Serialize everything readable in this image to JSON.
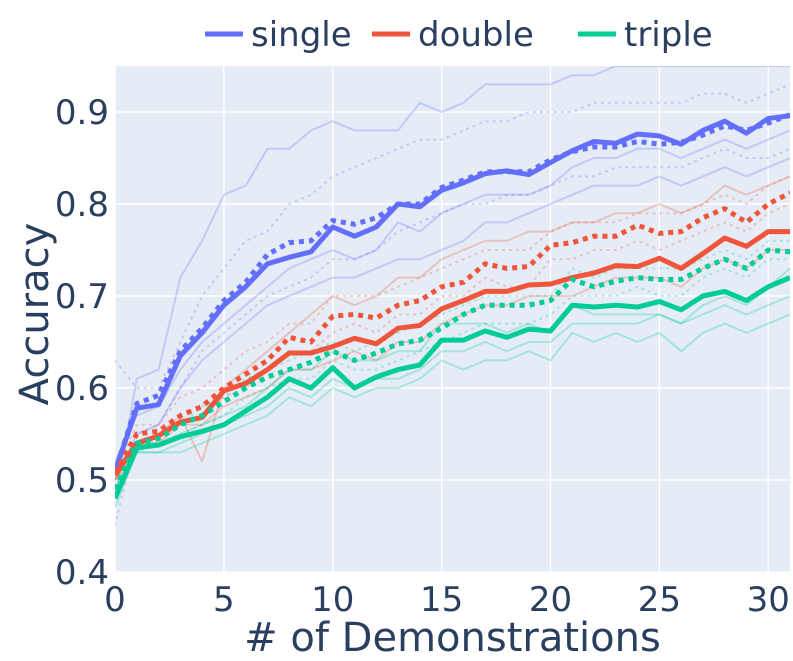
{
  "chart_data": {
    "type": "line",
    "title": "",
    "xlabel": "# of Demonstrations",
    "ylabel": "Accuracy",
    "xlim": [
      0,
      31
    ],
    "ylim": [
      0.4,
      0.95
    ],
    "grid": true,
    "legend_position": "top",
    "x_ticks": [
      "0",
      "5",
      "10",
      "15",
      "20",
      "25",
      "30"
    ],
    "y_ticks": [
      "0.4",
      "0.5",
      "0.6",
      "0.7",
      "0.8",
      "0.9"
    ],
    "x": [
      0,
      1,
      2,
      3,
      4,
      5,
      6,
      7,
      8,
      9,
      10,
      11,
      12,
      13,
      14,
      15,
      16,
      17,
      18,
      19,
      20,
      21,
      22,
      23,
      24,
      25,
      26,
      27,
      28,
      29,
      30,
      31
    ],
    "legend": [
      {
        "name": "single",
        "color": "#636efa"
      },
      {
        "name": "double",
        "color": "#ef553b"
      },
      {
        "name": "triple",
        "color": "#00cc96"
      }
    ],
    "series": [
      {
        "name": "single",
        "style": "solid-mean",
        "color": "#636efa",
        "values": [
          0.51,
          0.578,
          0.582,
          0.635,
          0.66,
          0.69,
          0.71,
          0.735,
          0.742,
          0.748,
          0.775,
          0.765,
          0.775,
          0.8,
          0.797,
          0.815,
          0.823,
          0.833,
          0.836,
          0.832,
          0.845,
          0.858,
          0.868,
          0.866,
          0.876,
          0.874,
          0.865,
          0.88,
          0.89,
          0.877,
          0.893,
          0.896
        ]
      },
      {
        "name": "single",
        "style": "dotted-mean",
        "color": "#636efa",
        "values": [
          0.508,
          0.583,
          0.592,
          0.64,
          0.665,
          0.695,
          0.715,
          0.745,
          0.758,
          0.76,
          0.782,
          0.778,
          0.785,
          0.8,
          0.8,
          0.818,
          0.826,
          0.835,
          0.835,
          0.835,
          0.848,
          0.857,
          0.862,
          0.862,
          0.868,
          0.865,
          0.867,
          0.875,
          0.885,
          0.88,
          0.888,
          0.897
        ]
      },
      {
        "name": "double",
        "style": "solid-mean",
        "color": "#ef553b",
        "values": [
          0.505,
          0.54,
          0.548,
          0.563,
          0.568,
          0.597,
          0.605,
          0.62,
          0.638,
          0.638,
          0.645,
          0.654,
          0.648,
          0.665,
          0.668,
          0.686,
          0.695,
          0.705,
          0.705,
          0.712,
          0.713,
          0.72,
          0.725,
          0.733,
          0.732,
          0.741,
          0.73,
          0.746,
          0.763,
          0.754,
          0.77,
          0.77
        ]
      },
      {
        "name": "double",
        "style": "dotted-mean",
        "color": "#ef553b",
        "values": [
          0.508,
          0.55,
          0.553,
          0.57,
          0.58,
          0.6,
          0.615,
          0.63,
          0.655,
          0.65,
          0.678,
          0.68,
          0.676,
          0.69,
          0.695,
          0.71,
          0.715,
          0.735,
          0.73,
          0.732,
          0.755,
          0.758,
          0.765,
          0.765,
          0.777,
          0.768,
          0.77,
          0.785,
          0.795,
          0.78,
          0.8,
          0.812
        ]
      },
      {
        "name": "triple",
        "style": "solid-mean",
        "color": "#00cc96",
        "values": [
          0.48,
          0.535,
          0.538,
          0.547,
          0.553,
          0.56,
          0.575,
          0.59,
          0.61,
          0.6,
          0.622,
          0.6,
          0.612,
          0.62,
          0.625,
          0.652,
          0.652,
          0.662,
          0.655,
          0.664,
          0.662,
          0.69,
          0.688,
          0.69,
          0.688,
          0.694,
          0.685,
          0.7,
          0.705,
          0.695,
          0.71,
          0.72
        ]
      },
      {
        "name": "triple",
        "style": "dotted-mean",
        "color": "#00cc96",
        "values": [
          0.49,
          0.54,
          0.545,
          0.56,
          0.57,
          0.585,
          0.6,
          0.612,
          0.62,
          0.628,
          0.64,
          0.63,
          0.638,
          0.648,
          0.652,
          0.665,
          0.68,
          0.69,
          0.69,
          0.69,
          0.695,
          0.718,
          0.71,
          0.716,
          0.72,
          0.718,
          0.718,
          0.73,
          0.74,
          0.73,
          0.75,
          0.748
        ]
      }
    ],
    "faint_series": [
      {
        "name": "single",
        "dash": "solid",
        "color": "#636efa",
        "values": [
          0.48,
          0.61,
          0.62,
          0.72,
          0.76,
          0.81,
          0.82,
          0.86,
          0.86,
          0.88,
          0.89,
          0.88,
          0.88,
          0.88,
          0.91,
          0.9,
          0.91,
          0.93,
          0.93,
          0.93,
          0.93,
          0.94,
          0.94,
          0.95,
          0.95,
          0.95,
          0.95,
          0.95,
          0.95,
          0.95,
          0.95,
          0.95
        ]
      },
      {
        "name": "single",
        "dash": "solid",
        "color": "#636efa",
        "values": [
          0.52,
          0.57,
          0.58,
          0.62,
          0.65,
          0.67,
          0.69,
          0.71,
          0.73,
          0.74,
          0.75,
          0.74,
          0.75,
          0.78,
          0.77,
          0.79,
          0.8,
          0.81,
          0.81,
          0.81,
          0.82,
          0.84,
          0.85,
          0.85,
          0.86,
          0.86,
          0.85,
          0.86,
          0.87,
          0.86,
          0.87,
          0.88
        ]
      },
      {
        "name": "single",
        "dash": "solid",
        "color": "#636efa",
        "values": [
          0.5,
          0.55,
          0.56,
          0.6,
          0.63,
          0.65,
          0.67,
          0.69,
          0.7,
          0.71,
          0.72,
          0.72,
          0.73,
          0.74,
          0.74,
          0.75,
          0.76,
          0.78,
          0.78,
          0.79,
          0.8,
          0.81,
          0.82,
          0.82,
          0.82,
          0.83,
          0.82,
          0.83,
          0.84,
          0.83,
          0.84,
          0.85
        ]
      },
      {
        "name": "single",
        "dash": "dot",
        "color": "#636efa",
        "values": [
          0.63,
          0.6,
          0.6,
          0.65,
          0.7,
          0.73,
          0.76,
          0.77,
          0.8,
          0.81,
          0.83,
          0.84,
          0.85,
          0.86,
          0.87,
          0.87,
          0.88,
          0.89,
          0.89,
          0.9,
          0.9,
          0.9,
          0.91,
          0.91,
          0.91,
          0.91,
          0.91,
          0.92,
          0.92,
          0.91,
          0.92,
          0.93
        ]
      },
      {
        "name": "single",
        "dash": "dot",
        "color": "#636efa",
        "values": [
          0.45,
          0.55,
          0.56,
          0.6,
          0.64,
          0.66,
          0.68,
          0.7,
          0.71,
          0.72,
          0.74,
          0.74,
          0.75,
          0.77,
          0.78,
          0.79,
          0.8,
          0.8,
          0.81,
          0.81,
          0.82,
          0.83,
          0.83,
          0.84,
          0.84,
          0.84,
          0.84,
          0.85,
          0.86,
          0.85,
          0.85,
          0.86
        ]
      },
      {
        "name": "double",
        "dash": "solid",
        "color": "#ef553b",
        "values": [
          0.5,
          0.53,
          0.55,
          0.57,
          0.52,
          0.6,
          0.62,
          0.64,
          0.66,
          0.68,
          0.7,
          0.69,
          0.7,
          0.72,
          0.72,
          0.74,
          0.75,
          0.76,
          0.76,
          0.77,
          0.77,
          0.78,
          0.78,
          0.79,
          0.79,
          0.8,
          0.79,
          0.8,
          0.82,
          0.81,
          0.82,
          0.83
        ]
      },
      {
        "name": "double",
        "dash": "solid",
        "color": "#ef553b",
        "values": [
          0.5,
          0.54,
          0.54,
          0.56,
          0.56,
          0.58,
          0.59,
          0.6,
          0.62,
          0.62,
          0.63,
          0.64,
          0.63,
          0.65,
          0.65,
          0.67,
          0.68,
          0.69,
          0.69,
          0.7,
          0.7,
          0.7,
          0.71,
          0.72,
          0.72,
          0.72,
          0.71,
          0.73,
          0.74,
          0.73,
          0.75,
          0.75
        ]
      },
      {
        "name": "double",
        "dash": "dot",
        "color": "#ef553b",
        "values": [
          0.51,
          0.56,
          0.56,
          0.59,
          0.6,
          0.62,
          0.64,
          0.65,
          0.67,
          0.67,
          0.7,
          0.7,
          0.7,
          0.71,
          0.72,
          0.73,
          0.74,
          0.75,
          0.75,
          0.75,
          0.77,
          0.78,
          0.78,
          0.78,
          0.79,
          0.79,
          0.79,
          0.8,
          0.81,
          0.8,
          0.82,
          0.83
        ]
      },
      {
        "name": "double",
        "dash": "dot",
        "color": "#ef553b",
        "values": [
          0.5,
          0.54,
          0.55,
          0.56,
          0.57,
          0.59,
          0.6,
          0.62,
          0.64,
          0.64,
          0.66,
          0.67,
          0.66,
          0.68,
          0.68,
          0.7,
          0.7,
          0.72,
          0.71,
          0.71,
          0.74,
          0.74,
          0.75,
          0.75,
          0.76,
          0.75,
          0.76,
          0.77,
          0.78,
          0.77,
          0.79,
          0.8
        ]
      },
      {
        "name": "triple",
        "dash": "solid",
        "color": "#00cc96",
        "values": [
          0.47,
          0.53,
          0.53,
          0.54,
          0.55,
          0.56,
          0.57,
          0.58,
          0.6,
          0.59,
          0.61,
          0.6,
          0.61,
          0.61,
          0.62,
          0.64,
          0.64,
          0.65,
          0.64,
          0.65,
          0.65,
          0.67,
          0.67,
          0.67,
          0.67,
          0.68,
          0.67,
          0.68,
          0.69,
          0.68,
          0.69,
          0.7
        ]
      },
      {
        "name": "triple",
        "dash": "solid",
        "color": "#00cc96",
        "values": [
          0.49,
          0.54,
          0.54,
          0.55,
          0.56,
          0.57,
          0.58,
          0.6,
          0.62,
          0.62,
          0.64,
          0.63,
          0.63,
          0.64,
          0.64,
          0.67,
          0.67,
          0.67,
          0.66,
          0.67,
          0.66,
          0.69,
          0.68,
          0.68,
          0.68,
          0.68,
          0.67,
          0.69,
          0.7,
          0.69,
          0.71,
          0.73
        ]
      },
      {
        "name": "triple",
        "dash": "solid",
        "color": "#00cc96",
        "values": [
          0.48,
          0.53,
          0.53,
          0.53,
          0.54,
          0.55,
          0.56,
          0.57,
          0.59,
          0.58,
          0.6,
          0.59,
          0.6,
          0.6,
          0.61,
          0.63,
          0.62,
          0.63,
          0.63,
          0.64,
          0.63,
          0.66,
          0.65,
          0.66,
          0.65,
          0.66,
          0.64,
          0.66,
          0.67,
          0.66,
          0.67,
          0.68
        ]
      },
      {
        "name": "triple",
        "dash": "dot",
        "color": "#00cc96",
        "values": [
          0.49,
          0.54,
          0.55,
          0.56,
          0.58,
          0.59,
          0.61,
          0.62,
          0.63,
          0.64,
          0.65,
          0.64,
          0.65,
          0.66,
          0.67,
          0.68,
          0.69,
          0.7,
          0.7,
          0.7,
          0.7,
          0.73,
          0.72,
          0.73,
          0.73,
          0.73,
          0.73,
          0.74,
          0.75,
          0.74,
          0.76,
          0.76
        ]
      },
      {
        "name": "triple",
        "dash": "dot",
        "color": "#00cc96",
        "values": [
          0.48,
          0.53,
          0.54,
          0.55,
          0.56,
          0.57,
          0.59,
          0.6,
          0.61,
          0.61,
          0.63,
          0.62,
          0.62,
          0.63,
          0.64,
          0.65,
          0.66,
          0.67,
          0.67,
          0.67,
          0.68,
          0.7,
          0.7,
          0.7,
          0.71,
          0.7,
          0.7,
          0.72,
          0.73,
          0.72,
          0.74,
          0.74
        ]
      }
    ]
  }
}
